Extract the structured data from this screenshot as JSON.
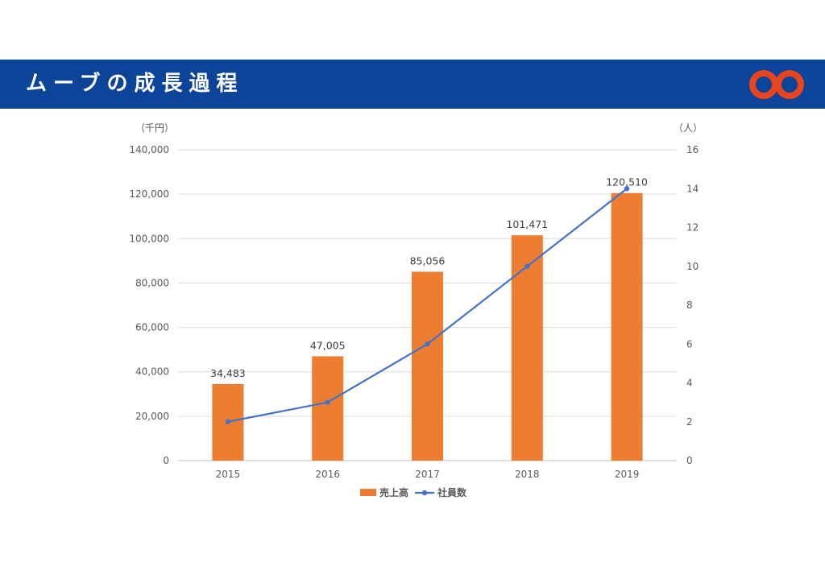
{
  "header": {
    "title": "ムーブの成長過程",
    "background": "#0c4499",
    "logo_icon": "infinity-logo-icon",
    "logo_color": "#e8451e"
  },
  "chart_data": {
    "type": "bar",
    "categories": [
      "2015",
      "2016",
      "2017",
      "2018",
      "2019"
    ],
    "series": [
      {
        "name": "売上高",
        "type": "bar",
        "axis": "left",
        "color": "#ed7d31",
        "values": [
          34483,
          47005,
          85056,
          101471,
          120510
        ],
        "labels": [
          "34,483",
          "47,005",
          "85,056",
          "101,471",
          "120,510"
        ]
      },
      {
        "name": "社員数",
        "type": "line",
        "axis": "right",
        "color": "#4472c4",
        "values": [
          2,
          3,
          6,
          10,
          14
        ]
      }
    ],
    "y_left": {
      "unit": "（千円）",
      "ylim": [
        0,
        140000
      ],
      "ticks": [
        "0",
        "20,000",
        "40,000",
        "60,000",
        "80,000",
        "100,000",
        "120,000",
        "140,000"
      ]
    },
    "y_right": {
      "unit": "（人）",
      "ylim": [
        0,
        16
      ],
      "ticks": [
        "0",
        "2",
        "4",
        "6",
        "8",
        "10",
        "12",
        "14",
        "16"
      ]
    },
    "grid": true,
    "legend_position": "bottom"
  }
}
